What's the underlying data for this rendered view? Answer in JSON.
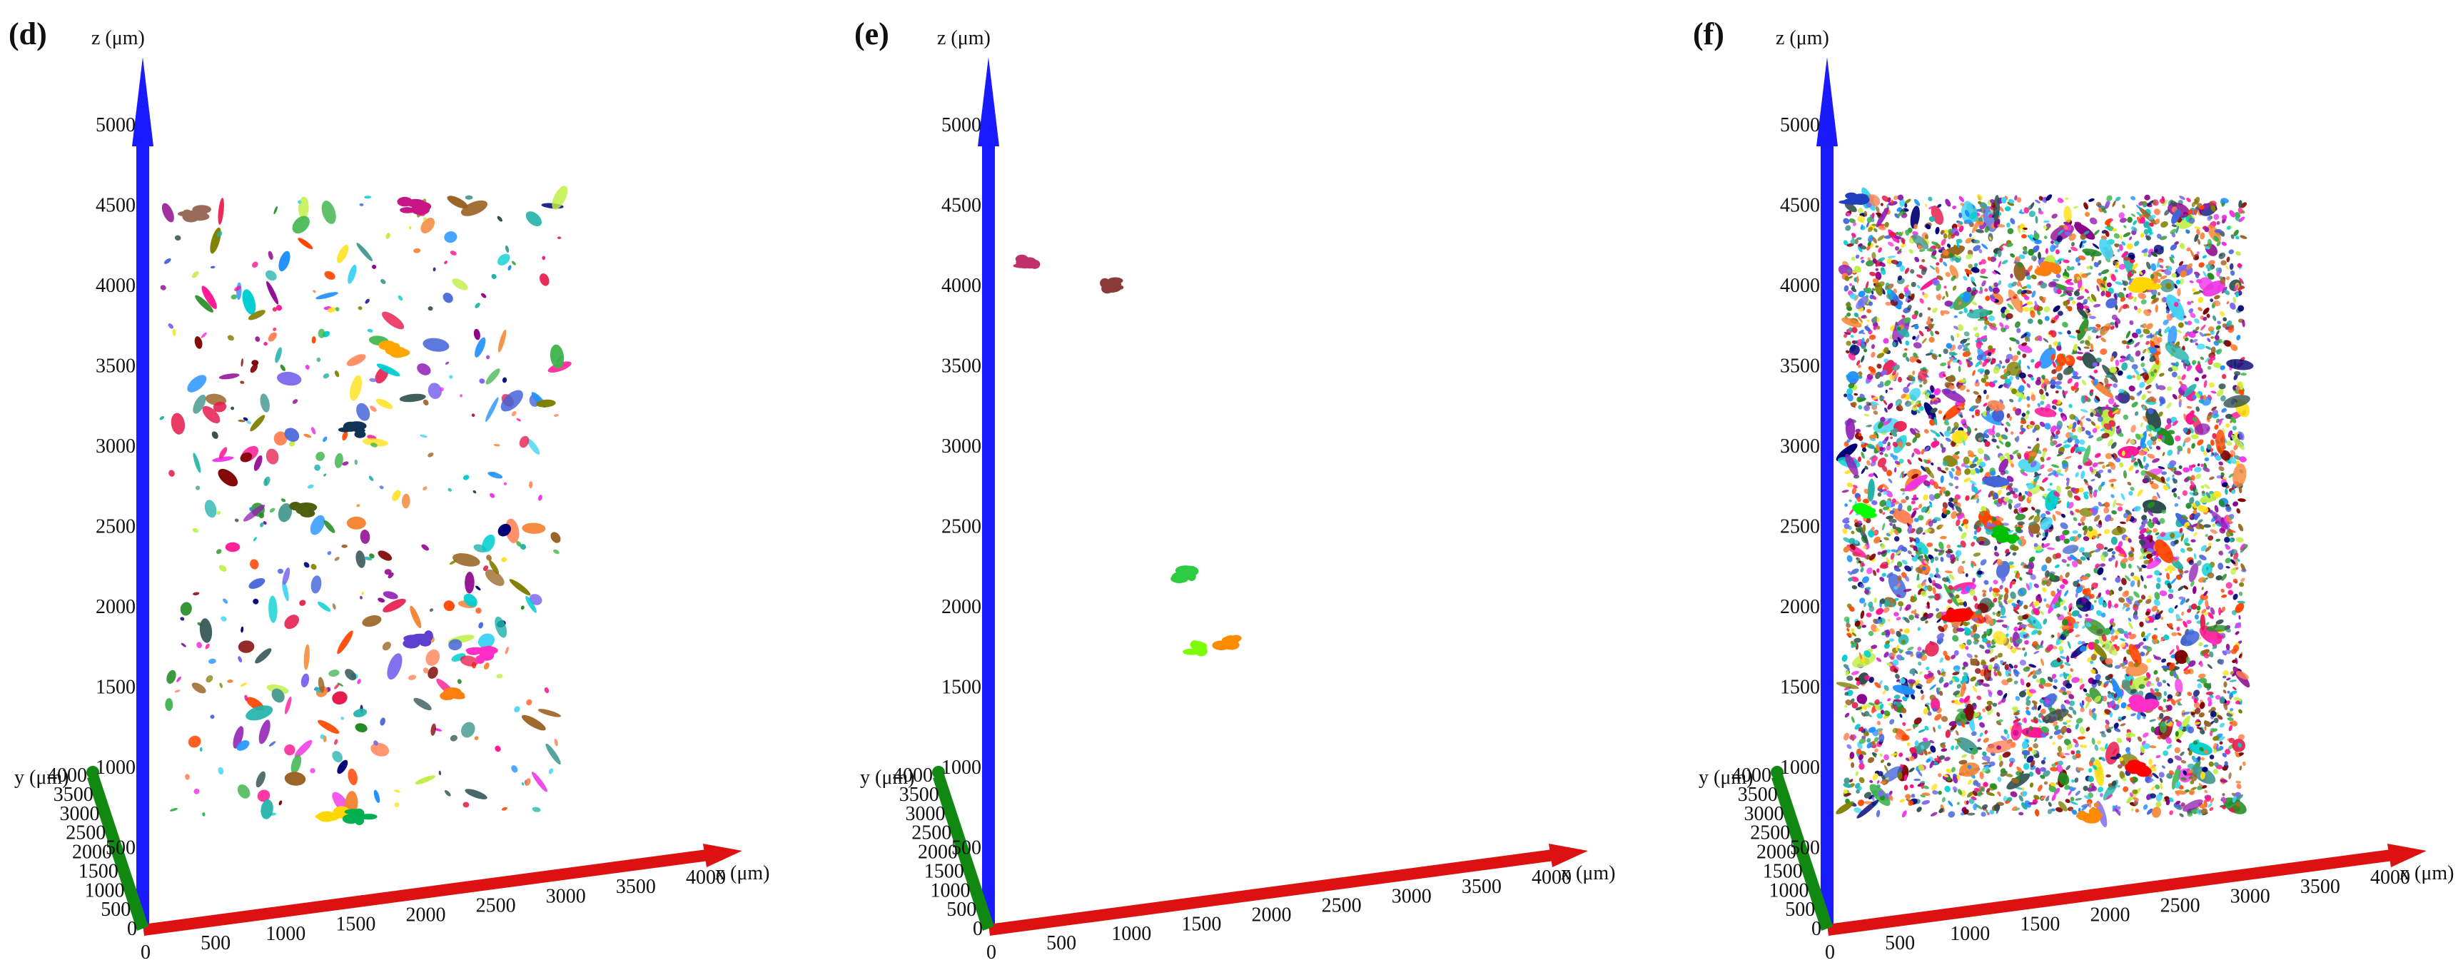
{
  "panels": [
    {
      "label": "(d)",
      "axes": {
        "z_label": "z (μm)",
        "x_label": "x (μm)",
        "y_label": "y (μm)"
      },
      "z_ticks": [
        "500",
        "1000",
        "1500",
        "2000",
        "2500",
        "3000",
        "3500",
        "4000",
        "4500",
        "5000"
      ],
      "x_ticks": [
        "0",
        "500",
        "1000",
        "1500",
        "2000",
        "2500",
        "3000",
        "3500",
        "4000"
      ],
      "y_ticks": [
        "0",
        "500",
        "1000",
        "1500",
        "2000",
        "2500",
        "3000",
        "3500",
        "4000"
      ],
      "cluster_density": "medium",
      "highlighted_clusters": [
        {
          "x": 300,
          "y": 4450,
          "color": "#9b6b5a"
        },
        {
          "x": 2250,
          "y": 1450,
          "color": "#ff7f0e"
        },
        {
          "x": 2000,
          "y": 1800,
          "color": "#5f3fd0"
        },
        {
          "x": 2450,
          "y": 1700,
          "color": "#ff2fc6"
        },
        {
          "x": 1100,
          "y": 2600,
          "color": "#4f5f10"
        },
        {
          "x": 1500,
          "y": 3100,
          "color": "#113355"
        },
        {
          "x": 1800,
          "y": 3600,
          "color": "#ffa500"
        },
        {
          "x": 1350,
          "y": 700,
          "color": "#ffd700"
        },
        {
          "x": 1550,
          "y": 700,
          "color": "#00b050"
        },
        {
          "x": 1950,
          "y": 4500,
          "color": "#c71585"
        }
      ]
    },
    {
      "label": "(e)",
      "axes": {
        "z_label": "z (μm)",
        "x_label": "x (μm)",
        "y_label": "y (μm)"
      },
      "z_ticks": [
        "500",
        "1000",
        "1500",
        "2000",
        "2500",
        "3000",
        "3500",
        "4000",
        "4500",
        "5000"
      ],
      "x_ticks": [
        "0",
        "500",
        "1000",
        "1500",
        "2000",
        "2500",
        "3000",
        "3500",
        "4000"
      ],
      "y_ticks": [
        "0",
        "500",
        "1000",
        "1500",
        "2000",
        "2500",
        "3000",
        "3500",
        "4000"
      ],
      "cluster_density": "sparse",
      "highlighted_clusters": [
        {
          "x": 200,
          "y": 4150,
          "color": "#c0306a"
        },
        {
          "x": 820,
          "y": 4000,
          "color": "#8b3a3a"
        },
        {
          "x": 1380,
          "y": 2200,
          "color": "#2ecc40"
        },
        {
          "x": 1480,
          "y": 1750,
          "color": "#7cfc00"
        },
        {
          "x": 1720,
          "y": 1780,
          "color": "#ff8c00"
        }
      ]
    },
    {
      "label": "(f)",
      "axes": {
        "z_label": "z (μm)",
        "x_label": "x (μm)",
        "y_label": "y (μm)"
      },
      "z_ticks": [
        "500",
        "1000",
        "1500",
        "2000",
        "2500",
        "3000",
        "3500",
        "4000",
        "4500",
        "5000"
      ],
      "x_ticks": [
        "0",
        "500",
        "1000",
        "1500",
        "2000",
        "2500",
        "3000",
        "3500",
        "4000"
      ],
      "y_ticks": [
        "0",
        "500",
        "1000",
        "1500",
        "2000",
        "2500",
        "3000",
        "3500",
        "4000"
      ],
      "cluster_density": "dense",
      "highlighted_clusters": [
        {
          "x": 150,
          "y": 4550,
          "color": "#1f3fbf"
        },
        {
          "x": 900,
          "y": 1950,
          "color": "#ff0000"
        },
        {
          "x": 2300,
          "y": 1400,
          "color": "#ff2fc6"
        },
        {
          "x": 2250,
          "y": 1000,
          "color": "#ff0000"
        },
        {
          "x": 1250,
          "y": 2450,
          "color": "#00c000"
        },
        {
          "x": 1600,
          "y": 4100,
          "color": "#ff7f0e"
        },
        {
          "x": 2300,
          "y": 4000,
          "color": "#ffd700"
        },
        {
          "x": 200,
          "y": 2600,
          "color": "#00ff00"
        },
        {
          "x": 1900,
          "y": 700,
          "color": "#ff8c00"
        }
      ]
    }
  ],
  "colors": {
    "z_axis": "#1a1aff",
    "x_axis": "#dd1111",
    "y_axis": "#118811",
    "palette": [
      "#e6194b",
      "#3cb44b",
      "#4363d8",
      "#f58231",
      "#911eb4",
      "#42d4f4",
      "#f032e6",
      "#bfef45",
      "#469990",
      "#9a6324",
      "#800000",
      "#000075",
      "#ffe119",
      "#ff7f50",
      "#00ced1",
      "#228b22",
      "#8b008b",
      "#ff1493",
      "#1e90ff",
      "#808000",
      "#2f4f4f",
      "#ff4500",
      "#7b68ee",
      "#20b2aa"
    ]
  }
}
